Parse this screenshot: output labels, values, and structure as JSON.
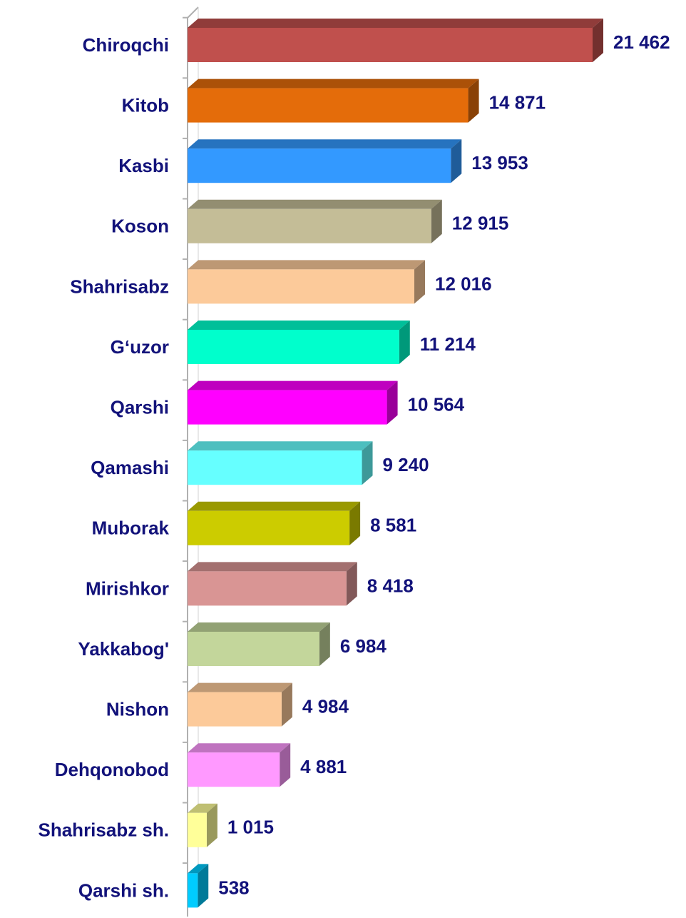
{
  "chart_data": {
    "type": "bar",
    "orientation": "horizontal",
    "categories": [
      "Chiroqchi",
      "Kitob",
      "Kasbi",
      "Koson",
      "Shahrisabz",
      "G‘uzor",
      "Qarshi",
      "Qamashi",
      "Muborak",
      "Mirishkor",
      "Yakkabog'",
      "Nishon",
      "Dehqonobod",
      "Shahrisabz sh.",
      "Qarshi sh."
    ],
    "values": [
      21462,
      14871,
      13953,
      12915,
      12016,
      11214,
      10564,
      9240,
      8581,
      8418,
      6984,
      4984,
      4881,
      1015,
      538
    ],
    "value_labels": [
      "21 462",
      "14 871",
      "13 953",
      "12 915",
      "12 016",
      "11 214",
      "10 564",
      "9 240",
      "8 581",
      "8 418",
      "6 984",
      "4 984",
      "4 881",
      "1 015",
      "538"
    ],
    "colors": [
      "#c0504d",
      "#e46c0a",
      "#3399ff",
      "#c4bd97",
      "#fcca9a",
      "#00ffcc",
      "#ff00ff",
      "#66ffff",
      "#cccc00",
      "#d99594",
      "#c3d69b",
      "#fcca9a",
      "#ff99ff",
      "#ffff99",
      "#00ccff"
    ]
  }
}
